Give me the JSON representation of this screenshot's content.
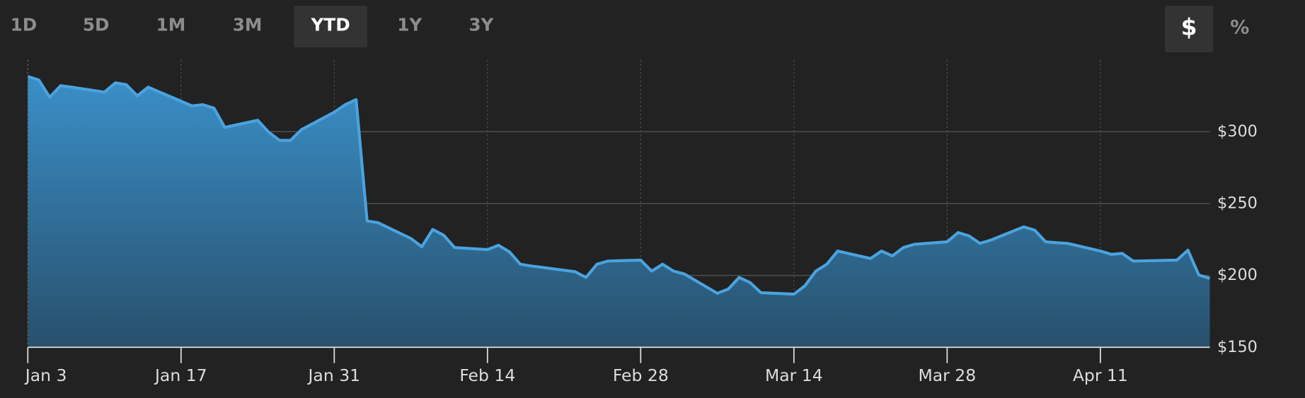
{
  "controls": {
    "ranges": [
      {
        "label": "1D",
        "selected": false
      },
      {
        "label": "5D",
        "selected": false
      },
      {
        "label": "1M",
        "selected": false
      },
      {
        "label": "3M",
        "selected": false
      },
      {
        "label": "YTD",
        "selected": true
      },
      {
        "label": "1Y",
        "selected": false
      },
      {
        "label": "3Y",
        "selected": false
      }
    ],
    "units": [
      {
        "label": "$",
        "selected": true
      },
      {
        "label": "%",
        "selected": false
      }
    ]
  },
  "chart_data": {
    "type": "area",
    "color": "#4aa3e0",
    "x": [
      "Jan 3",
      "Jan 4",
      "Jan 5",
      "Jan 6",
      "Jan 7",
      "Jan 10",
      "Jan 11",
      "Jan 12",
      "Jan 13",
      "Jan 14",
      "Jan 18",
      "Jan 19",
      "Jan 20",
      "Jan 21",
      "Jan 24",
      "Jan 25",
      "Jan 26",
      "Jan 27",
      "Jan 28",
      "Jan 31",
      "Feb 1",
      "Feb 2",
      "Feb 3",
      "Feb 4",
      "Feb 7",
      "Feb 8",
      "Feb 9",
      "Feb 10",
      "Feb 11",
      "Feb 14",
      "Feb 15",
      "Feb 16",
      "Feb 17",
      "Feb 18",
      "Feb 22",
      "Feb 23",
      "Feb 24",
      "Feb 25",
      "Feb 28",
      "Mar 1",
      "Mar 2",
      "Mar 3",
      "Mar 4",
      "Mar 7",
      "Mar 8",
      "Mar 9",
      "Mar 10",
      "Mar 11",
      "Mar 14",
      "Mar 15",
      "Mar 16",
      "Mar 17",
      "Mar 18",
      "Mar 21",
      "Mar 22",
      "Mar 23",
      "Mar 24",
      "Mar 25",
      "Mar 28",
      "Mar 29",
      "Mar 30",
      "Mar 31",
      "Apr 1",
      "Apr 4",
      "Apr 5",
      "Apr 6",
      "Apr 7",
      "Apr 8",
      "Apr 11",
      "Apr 12",
      "Apr 13",
      "Apr 14",
      "Apr 18",
      "Apr 19",
      "Apr 20",
      "Apr 21"
    ],
    "values": [
      338.4,
      336,
      324,
      332,
      331,
      327.5,
      334,
      332.7,
      325,
      331,
      318,
      318.8,
      316.5,
      303,
      308,
      299.7,
      294,
      294,
      301.4,
      313.6,
      318.8,
      322.3,
      237.9,
      236.7,
      225.7,
      220,
      232,
      228,
      219.4,
      218,
      221,
      216.5,
      207.8,
      206.6,
      202.6,
      198.6,
      207.8,
      210,
      210.7,
      203,
      207.8,
      203,
      201,
      187.6,
      190.5,
      198.6,
      195,
      188,
      187,
      192.8,
      203,
      207.8,
      217,
      211.8,
      217,
      213.6,
      219.4,
      221.7,
      223.4,
      229.8,
      227.5,
      222.3,
      224.6,
      233.8,
      231.5,
      223.4,
      222.8,
      222.3,
      217,
      214.7,
      215.3,
      210,
      210.7,
      217.6,
      200.3,
      198
    ],
    "xlim": [
      "Jan 3",
      "Apr 21"
    ],
    "xticks": [
      "Jan 3",
      "Jan 17",
      "Jan 31",
      "Feb 14",
      "Feb 28",
      "Mar 14",
      "Mar 28",
      "Apr 11"
    ],
    "ylim": [
      150,
      350
    ],
    "yticks": [
      {
        "value": 150,
        "label": "$150"
      },
      {
        "value": 200,
        "label": "$200"
      },
      {
        "value": 250,
        "label": "$250"
      },
      {
        "value": 300,
        "label": "$300"
      }
    ],
    "grid": true
  }
}
